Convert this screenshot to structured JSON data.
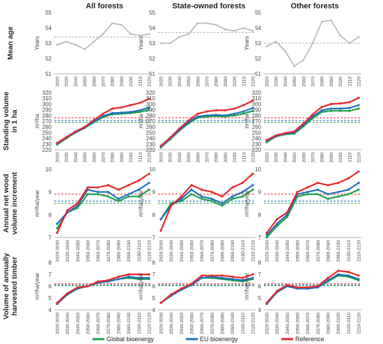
{
  "columns": [
    "All forests",
    "State-owned forests",
    "Other forests"
  ],
  "rows": [
    {
      "label": "Mean age",
      "unit": "Years"
    },
    {
      "label": "Standing volume in 1 ha",
      "unit": "m³/ha"
    },
    {
      "label": "Annual net wood volume increment",
      "unit": "m³/ha/year"
    },
    {
      "label": "Volume of annually harvested timber",
      "unit": "m³/ha/year"
    }
  ],
  "legend": [
    {
      "name": "Global bioenergy",
      "color": "#1fa14a"
    },
    {
      "name": "EU bioenergy",
      "color": "#1f6fbf"
    },
    {
      "name": "Reference",
      "color": "#e8262a"
    }
  ],
  "colors": {
    "reference_2020_line": "#b0b0b0"
  },
  "chart_data": [
    {
      "type": "line",
      "row": "Mean age",
      "column": "All forests",
      "x": [
        "2020",
        "2030",
        "2040",
        "2050",
        "2060",
        "2070",
        "2080",
        "2090",
        "2100",
        "2110",
        "2120"
      ],
      "series": [
        {
          "values": [
            52.9,
            53.1,
            52.9,
            52.6,
            53.1,
            53.6,
            54.3,
            54.2,
            53.6,
            53.5,
            53.6
          ]
        }
      ],
      "hline": 53.4,
      "ylim": [
        51,
        55
      ],
      "yticks": [
        51,
        52,
        53,
        54,
        55
      ],
      "ylabel": "Years"
    },
    {
      "type": "line",
      "row": "Mean age",
      "column": "State-owned forests",
      "x": [
        "2020",
        "2030",
        "2040",
        "2050",
        "2060",
        "2070",
        "2080",
        "2090",
        "2100",
        "2110",
        "2120"
      ],
      "series": [
        {
          "values": [
            53.0,
            53.0,
            53.4,
            53.6,
            54.3,
            54.3,
            54.2,
            53.9,
            53.8,
            54.0,
            53.8
          ]
        }
      ],
      "hline": 53.7,
      "ylim": [
        51,
        55
      ],
      "yticks": [
        51,
        52,
        53,
        54,
        55
      ],
      "ylabel": "Years"
    },
    {
      "type": "line",
      "row": "Mean age",
      "column": "Other forests",
      "x": [
        "2020",
        "2030",
        "2040",
        "2050",
        "2060",
        "2070",
        "2080",
        "2090",
        "2100",
        "2110",
        "2120"
      ],
      "series": [
        {
          "values": [
            52.8,
            53.1,
            52.5,
            51.5,
            51.9,
            53.0,
            54.4,
            54.5,
            53.5,
            53.0,
            53.4
          ]
        }
      ],
      "hline": 53.0,
      "ylim": [
        51,
        55
      ],
      "yticks": [
        51,
        52,
        53,
        54,
        55
      ],
      "ylabel": "Years"
    },
    {
      "type": "line",
      "row": "Standing volume in 1 ha",
      "column": "All forests",
      "x": [
        "2020",
        "2030",
        "2040",
        "2050",
        "2060",
        "2070",
        "2080",
        "2090",
        "2100",
        "2110",
        "2120"
      ],
      "series": [
        {
          "name": "Global bioenergy",
          "values": [
            229,
            240,
            250,
            258,
            268,
            277,
            282,
            283,
            284,
            286,
            290
          ]
        },
        {
          "name": "EU bioenergy",
          "values": [
            231,
            241,
            251,
            259,
            269,
            279,
            284,
            285,
            286,
            289,
            294
          ]
        },
        {
          "name": "Reference",
          "values": [
            232,
            242,
            252,
            260,
            272,
            283,
            292,
            294,
            298,
            302,
            309
          ]
        }
      ],
      "hlines": [
        {
          "name": "Reference",
          "value": 276
        },
        {
          "name": "EU bioenergy",
          "value": 271
        },
        {
          "name": "Global bioenergy",
          "value": 268
        }
      ],
      "ylim": [
        220,
        320
      ],
      "yticks": [
        220,
        230,
        240,
        250,
        260,
        270,
        280,
        290,
        300,
        310,
        320
      ],
      "ylabel": "m³/ha"
    },
    {
      "type": "line",
      "row": "Standing volume in 1 ha",
      "column": "State-owned forests",
      "x": [
        "2020",
        "2030",
        "2040",
        "2050",
        "2060",
        "2070",
        "2080",
        "2090",
        "2100",
        "2110",
        "2120"
      ],
      "series": [
        {
          "name": "Global bioenergy",
          "values": [
            224,
            238,
            253,
            266,
            276,
            278,
            279,
            278,
            280,
            283,
            288
          ]
        },
        {
          "name": "EU bioenergy",
          "values": [
            225,
            239,
            255,
            268,
            278,
            280,
            281,
            280,
            283,
            287,
            293
          ]
        },
        {
          "name": "Reference",
          "values": [
            227,
            241,
            257,
            271,
            283,
            287,
            289,
            289,
            292,
            298,
            306
          ]
        }
      ],
      "hlines": [
        {
          "name": "Reference",
          "value": 276
        },
        {
          "name": "EU bioenergy",
          "value": 271
        },
        {
          "name": "Global bioenergy",
          "value": 268
        }
      ],
      "ylim": [
        220,
        320
      ],
      "yticks": [
        220,
        230,
        240,
        250,
        260,
        270,
        280,
        290,
        300,
        310,
        320
      ],
      "ylabel": "m³/ha"
    },
    {
      "type": "line",
      "row": "Standing volume in 1 ha",
      "column": "Other forests",
      "x": [
        "2020",
        "2030",
        "2040",
        "2050",
        "2060",
        "2070",
        "2080",
        "2090",
        "2100",
        "2110",
        "2120"
      ],
      "series": [
        {
          "name": "Global bioenergy",
          "values": [
            233,
            243,
            247,
            248,
            261,
            275,
            286,
            288,
            288,
            288,
            292
          ]
        },
        {
          "name": "EU bioenergy",
          "values": [
            236,
            244,
            248,
            250,
            263,
            278,
            289,
            292,
            292,
            293,
            298
          ]
        },
        {
          "name": "Reference",
          "values": [
            237,
            245,
            249,
            252,
            266,
            282,
            295,
            300,
            301,
            303,
            311
          ]
        }
      ],
      "hlines": [
        {
          "name": "Reference",
          "value": 276
        },
        {
          "name": "EU bioenergy",
          "value": 271
        },
        {
          "name": "Global bioenergy",
          "value": 268
        }
      ],
      "ylim": [
        220,
        320
      ],
      "yticks": [
        220,
        230,
        240,
        250,
        260,
        270,
        280,
        290,
        300,
        310,
        320
      ],
      "ylabel": "m³/ha"
    },
    {
      "type": "line",
      "row": "Annual net wood volume increment",
      "column": "All forests",
      "x": [
        "2020-2030",
        "2030-2040",
        "2040-2050",
        "2050-2060",
        "2060-2070",
        "2070-2080",
        "2080-2090",
        "2090-2100",
        "2100-2110",
        "2110-2120"
      ],
      "series": [
        {
          "name": "Global bioenergy",
          "values": [
            7.4,
            8.1,
            8.3,
            8.9,
            8.9,
            8.8,
            8.6,
            8.8,
            8.8,
            9.1
          ]
        },
        {
          "name": "EU bioenergy",
          "values": [
            7.6,
            8.1,
            8.4,
            9.1,
            9.0,
            9.0,
            8.7,
            8.9,
            9.1,
            9.4
          ]
        },
        {
          "name": "Reference",
          "values": [
            7.2,
            8.2,
            8.5,
            9.2,
            9.2,
            9.3,
            9.1,
            9.3,
            9.5,
            9.8
          ]
        }
      ],
      "hlines": [
        {
          "name": "Reference",
          "value": 8.9
        },
        {
          "name": "EU bioenergy",
          "value": 8.6
        },
        {
          "name": "Global bioenergy",
          "value": 8.5
        }
      ],
      "ylim": [
        7,
        10
      ],
      "yticks": [
        7,
        8,
        9,
        10
      ],
      "ylabel": "m³/ha/year"
    },
    {
      "type": "line",
      "row": "Annual net wood volume increment",
      "column": "State-owned forests",
      "x": [
        "2020-2030",
        "2030-2040",
        "2040-2050",
        "2050-2060",
        "2060-2070",
        "2070-2080",
        "2080-2090",
        "2090-2100",
        "2100-2110",
        "2110-2120"
      ],
      "series": [
        {
          "name": "Global bioenergy",
          "values": [
            7.8,
            8.5,
            8.6,
            8.9,
            8.7,
            8.6,
            8.4,
            8.7,
            8.8,
            9.1
          ]
        },
        {
          "name": "EU bioenergy",
          "values": [
            7.8,
            8.4,
            8.7,
            9.1,
            8.8,
            8.7,
            8.5,
            8.8,
            9.0,
            9.3
          ]
        },
        {
          "name": "Reference",
          "values": [
            7.3,
            8.4,
            8.8,
            9.3,
            9.1,
            9.0,
            8.8,
            9.2,
            9.4,
            9.8
          ]
        }
      ],
      "hlines": [
        {
          "name": "Reference",
          "value": 8.9
        },
        {
          "name": "EU bioenergy",
          "value": 8.6
        },
        {
          "name": "Global bioenergy",
          "value": 8.5
        }
      ],
      "ylim": [
        7,
        10
      ],
      "yticks": [
        7,
        8,
        9,
        10
      ],
      "ylabel": "m³/ha/year"
    },
    {
      "type": "line",
      "row": "Annual net wood volume increment",
      "column": "Other forests",
      "x": [
        "2020-2030",
        "2030-2040",
        "2040-2050",
        "2050-2060",
        "2060-2070",
        "2070-2080",
        "2080-2090",
        "2090-2100",
        "2100-2110",
        "2110-2120"
      ],
      "series": [
        {
          "name": "Global bioenergy",
          "values": [
            7.0,
            7.5,
            7.9,
            8.8,
            8.9,
            8.9,
            8.7,
            8.8,
            8.9,
            9.1
          ]
        },
        {
          "name": "EU bioenergy",
          "values": [
            7.1,
            7.6,
            8.0,
            8.9,
            9.0,
            9.1,
            8.9,
            9.0,
            9.1,
            9.4
          ]
        },
        {
          "name": "Reference",
          "values": [
            7.2,
            7.8,
            8.1,
            9.0,
            9.2,
            9.4,
            9.3,
            9.4,
            9.6,
            9.9
          ]
        }
      ],
      "hlines": [
        {
          "name": "Reference",
          "value": 8.9
        },
        {
          "name": "EU bioenergy",
          "value": 8.6
        },
        {
          "name": "Global bioenergy",
          "value": 8.5
        }
      ],
      "ylim": [
        7,
        10
      ],
      "yticks": [
        7,
        8,
        9,
        10
      ],
      "ylabel": "m³/ha/year"
    },
    {
      "type": "line",
      "row": "Volume of annually harvested timber",
      "column": "All forests",
      "x": [
        "2020-2030",
        "2030-2040",
        "2040-2050",
        "2050-2060",
        "2060-2070",
        "2070-2080",
        "2080-2090",
        "2090-2100",
        "2100-2110",
        "2110-2120"
      ],
      "series": [
        {
          "name": "Global bioenergy",
          "values": [
            4.5,
            5.3,
            5.8,
            6.0,
            6.3,
            6.4,
            6.6,
            6.7,
            6.6,
            6.6
          ]
        },
        {
          "name": "EU bioenergy",
          "values": [
            4.5,
            5.3,
            5.8,
            6.0,
            6.3,
            6.4,
            6.6,
            6.8,
            6.7,
            6.7
          ]
        },
        {
          "name": "Reference",
          "values": [
            4.6,
            5.4,
            5.9,
            6.0,
            6.4,
            6.5,
            6.8,
            7.0,
            7.0,
            7.0
          ]
        }
      ],
      "hlines": [
        {
          "name": "Reference",
          "value": 6.2
        },
        {
          "name": "EU bioenergy",
          "value": 6.1
        },
        {
          "name": "Global bioenergy",
          "value": 6.05
        }
      ],
      "ylim": [
        4,
        8
      ],
      "yticks": [
        4,
        5,
        6,
        7,
        8
      ],
      "ylabel": "m³/ha/year"
    },
    {
      "type": "line",
      "row": "Volume of annually harvested timber",
      "column": "State-owned forests",
      "x": [
        "2020-2030",
        "2030-2040",
        "2040-2050",
        "2050-2060",
        "2060-2070",
        "2070-2080",
        "2080-2090",
        "2090-2100",
        "2100-2110",
        "2110-2120"
      ],
      "series": [
        {
          "name": "Global bioenergy",
          "values": [
            4.6,
            5.2,
            5.7,
            6.1,
            6.7,
            6.7,
            6.6,
            6.5,
            6.4,
            6.6
          ]
        },
        {
          "name": "EU bioenergy",
          "values": [
            4.6,
            5.2,
            5.7,
            6.1,
            6.7,
            6.8,
            6.7,
            6.6,
            6.5,
            6.7
          ]
        },
        {
          "name": "Reference",
          "values": [
            4.6,
            5.3,
            5.8,
            6.2,
            6.9,
            6.9,
            6.9,
            6.8,
            6.7,
            7.0
          ]
        }
      ],
      "hlines": [
        {
          "name": "Reference",
          "value": 6.2
        },
        {
          "name": "EU bioenergy",
          "value": 6.1
        },
        {
          "name": "Global bioenergy",
          "value": 6.05
        }
      ],
      "ylim": [
        4,
        8
      ],
      "yticks": [
        4,
        5,
        6,
        7,
        8
      ],
      "ylabel": "m³/ha/year"
    },
    {
      "type": "line",
      "row": "Volume of annually harvested timber",
      "column": "Other forests",
      "x": [
        "2020-2030",
        "2030-2040",
        "2040-2050",
        "2050-2060",
        "2060-2070",
        "2070-2080",
        "2080-2090",
        "2090-2100",
        "2100-2110",
        "2110-2120"
      ],
      "series": [
        {
          "name": "Global bioenergy",
          "values": [
            4.5,
            5.5,
            6.0,
            5.8,
            5.8,
            5.9,
            6.4,
            6.9,
            6.8,
            6.5
          ]
        },
        {
          "name": "EU bioenergy",
          "values": [
            4.5,
            5.5,
            6.0,
            5.8,
            5.8,
            5.9,
            6.5,
            7.0,
            6.9,
            6.6
          ]
        },
        {
          "name": "Reference",
          "values": [
            4.6,
            5.6,
            6.1,
            5.9,
            5.9,
            6.0,
            6.7,
            7.3,
            7.2,
            6.9
          ]
        }
      ],
      "hlines": [
        {
          "name": "Reference",
          "value": 6.2
        },
        {
          "name": "EU bioenergy",
          "value": 6.1
        },
        {
          "name": "Global bioenergy",
          "value": 6.05
        }
      ],
      "ylim": [
        4,
        8
      ],
      "yticks": [
        4,
        5,
        6,
        7,
        8
      ],
      "ylabel": "m³/ha/year"
    }
  ]
}
